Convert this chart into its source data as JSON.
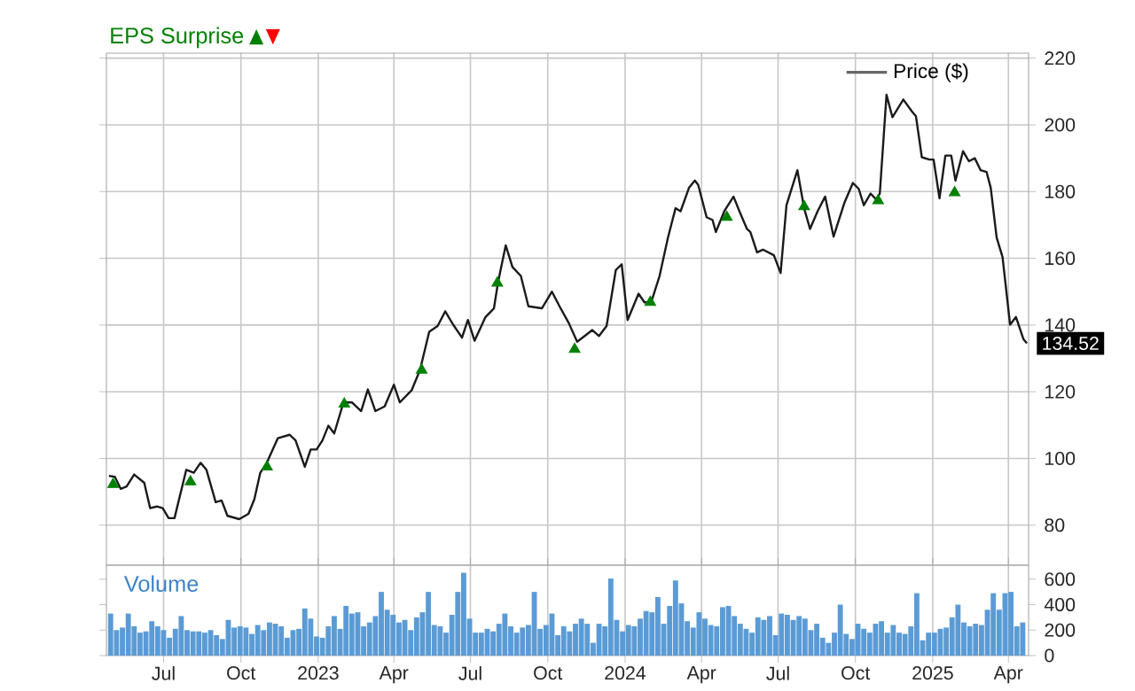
{
  "chart_data": [
    {
      "type": "line",
      "xlim": [
        "2022-04-24",
        "2025-04-25"
      ],
      "ylim": [
        68,
        221.5
      ],
      "yticks": [
        80,
        100,
        120,
        140,
        160,
        180,
        200,
        220
      ],
      "xticks": [
        {
          "value": "2022-07-01",
          "label": null
        },
        {
          "value": "2022-10-01",
          "label": null
        },
        {
          "value": "2023-01-01",
          "label": null
        },
        {
          "value": "2023-04-01",
          "label": null
        },
        {
          "value": "2023-07-01",
          "label": null
        },
        {
          "value": "2023-10-01",
          "label": null
        },
        {
          "value": "2024-01-01",
          "label": null
        },
        {
          "value": "2024-04-01",
          "label": null
        },
        {
          "value": "2024-07-01",
          "label": null
        },
        {
          "value": "2024-10-01",
          "label": null
        },
        {
          "value": "2025-01-01",
          "label": null
        },
        {
          "value": "2025-04-01",
          "label": null
        }
      ],
      "tick_labels": "y",
      "grid": true,
      "legend": "top right",
      "series": [
        {
          "name": "Price ($)",
          "type": "line",
          "color": "#1a1a1a",
          "x": [
            "2022-04-27",
            "2022-05-04",
            "2022-05-11",
            "2022-05-18",
            "2022-05-27",
            "2022-06-08",
            "2022-06-15",
            "2022-06-23",
            "2022-06-30",
            "2022-07-07",
            "2022-07-14",
            "2022-07-28",
            "2022-08-06",
            "2022-08-14",
            "2022-08-21",
            "2022-09-01",
            "2022-09-08",
            "2022-09-15",
            "2022-09-29",
            "2022-10-10",
            "2022-10-17",
            "2022-10-24",
            "2022-10-31",
            "2022-11-14",
            "2022-11-28",
            "2022-12-05",
            "2022-12-16",
            "2022-12-23",
            "2022-12-30",
            "2023-01-06",
            "2023-01-13",
            "2023-01-20",
            "2023-01-31",
            "2023-02-10",
            "2023-02-21",
            "2023-03-01",
            "2023-03-10",
            "2023-03-21",
            "2023-04-01",
            "2023-04-08",
            "2023-04-22",
            "2023-05-02",
            "2023-05-13",
            "2023-05-23",
            "2023-06-01",
            "2023-06-10",
            "2023-06-21",
            "2023-06-28",
            "2023-07-06",
            "2023-07-19",
            "2023-07-29",
            "2023-08-03",
            "2023-08-12",
            "2023-08-20",
            "2023-08-30",
            "2023-09-08",
            "2023-09-24",
            "2023-10-06",
            "2023-10-15",
            "2023-10-26",
            "2023-11-05",
            "2023-11-16",
            "2023-11-23",
            "2023-12-01",
            "2023-12-10",
            "2023-12-21",
            "2023-12-28",
            "2024-01-04",
            "2024-01-17",
            "2024-01-24",
            "2024-02-01",
            "2024-02-11",
            "2024-02-21",
            "2024-03-01",
            "2024-03-07",
            "2024-03-17",
            "2024-03-24",
            "2024-03-28",
            "2024-04-07",
            "2024-04-14",
            "2024-04-18",
            "2024-04-28",
            "2024-05-09",
            "2024-05-16",
            "2024-05-25",
            "2024-05-29",
            "2024-06-06",
            "2024-06-13",
            "2024-06-26",
            "2024-07-04",
            "2024-07-11",
            "2024-07-24",
            "2024-08-01",
            "2024-08-08",
            "2024-08-17",
            "2024-08-26",
            "2024-09-05",
            "2024-09-18",
            "2024-09-28",
            "2024-10-05",
            "2024-10-11",
            "2024-10-19",
            "2024-10-26",
            "2024-10-30",
            "2024-11-07",
            "2024-11-14",
            "2024-11-27",
            "2024-12-07",
            "2024-12-12",
            "2024-12-19",
            "2024-12-28",
            "2025-01-02",
            "2025-01-09",
            "2025-01-16",
            "2025-01-23",
            "2025-01-28",
            "2025-02-06",
            "2025-02-13",
            "2025-02-20",
            "2025-02-27",
            "2025-03-06",
            "2025-03-11",
            "2025-03-18",
            "2025-03-25",
            "2025-04-03",
            "2025-04-10",
            "2025-04-19",
            "2025-04-23"
          ],
          "values": [
            94.8,
            94.5,
            90.9,
            91.6,
            95.2,
            92.7,
            85.1,
            85.6,
            85.1,
            82.1,
            82.1,
            96.6,
            95.7,
            98.7,
            96.6,
            86.9,
            87.4,
            82.8,
            81.8,
            83.4,
            87.8,
            95.7,
            98.3,
            106.1,
            107.1,
            105.4,
            97.5,
            102.7,
            102.7,
            105.4,
            109.8,
            107.5,
            116.8,
            116.8,
            114.2,
            120.7,
            114.2,
            115.6,
            122.1,
            116.8,
            120.4,
            126.5,
            138.0,
            139.7,
            144.1,
            140.3,
            136.2,
            141.5,
            135.3,
            142.4,
            145.0,
            153.0,
            163.9,
            157.4,
            154.7,
            145.6,
            145.0,
            150.0,
            145.6,
            140.6,
            135.0,
            137.1,
            138.5,
            136.7,
            139.7,
            156.5,
            158.2,
            141.5,
            149.4,
            146.8,
            146.8,
            154.7,
            166.2,
            175.0,
            174.1,
            181.1,
            183.3,
            182.0,
            172.3,
            171.5,
            167.9,
            174.1,
            178.5,
            174.1,
            168.8,
            167.9,
            161.8,
            162.6,
            160.9,
            155.6,
            175.9,
            186.4,
            175.0,
            168.8,
            174.1,
            178.5,
            166.5,
            176.7,
            182.6,
            180.8,
            175.9,
            179.4,
            177.6,
            179.4,
            209.0,
            202.3,
            207.6,
            204.1,
            202.6,
            190.3,
            189.6,
            189.6,
            178.0,
            190.8,
            190.8,
            183.3,
            192.1,
            189.1,
            190.0,
            186.4,
            185.9,
            181.1,
            166.2,
            160.4,
            140.1,
            142.4,
            135.7,
            134.52
          ]
        },
        {
          "name": "EPS Surprise",
          "type": "scatter",
          "marker": "triangle",
          "color": "#008000",
          "x": [
            "2022-05-02",
            "2022-08-02",
            "2022-11-01",
            "2023-02-01",
            "2023-05-04",
            "2023-08-02",
            "2023-11-02",
            "2024-01-31",
            "2024-05-01",
            "2024-08-01",
            "2024-10-28",
            "2025-01-27"
          ],
          "values": [
            92.2,
            93.0,
            97.5,
            116.3,
            126.5,
            152.6,
            132.7,
            146.8,
            172.3,
            175.5,
            177.3,
            179.7
          ]
        }
      ],
      "annotations": [
        {
          "text": "134.52",
          "x": "2025-04-23",
          "y": 134.52
        }
      ]
    },
    {
      "type": "bar",
      "title": "Volume",
      "color": "#5b9bd5",
      "xlim": [
        "2022-04-24",
        "2025-04-25"
      ],
      "ylim": [
        0,
        710
      ],
      "yticks": [
        0,
        200,
        400,
        600
      ],
      "grid": "x",
      "xticks": [
        {
          "value": "2022-07-01",
          "label": "Jul"
        },
        {
          "value": "2022-10-01",
          "label": "Oct"
        },
        {
          "value": "2023-01-01",
          "label": "2023"
        },
        {
          "value": "2023-04-01",
          "label": "Apr"
        },
        {
          "value": "2023-07-01",
          "label": "Jul"
        },
        {
          "value": "2023-10-01",
          "label": "Oct"
        },
        {
          "value": "2024-01-01",
          "label": "2024"
        },
        {
          "value": "2024-04-01",
          "label": "Apr"
        },
        {
          "value": "2024-07-01",
          "label": "Jul"
        },
        {
          "value": "2024-10-01",
          "label": "Oct"
        },
        {
          "value": "2025-01-01",
          "label": "2025"
        },
        {
          "value": "2025-04-01",
          "label": "Apr"
        }
      ],
      "x": [
        "2022-04-29",
        "2022-05-06",
        "2022-05-13",
        "2022-05-20",
        "2022-05-27",
        "2022-06-03",
        "2022-06-10",
        "2022-06-17",
        "2022-06-24",
        "2022-07-01",
        "2022-07-08",
        "2022-07-15",
        "2022-07-22",
        "2022-07-29",
        "2022-08-05",
        "2022-08-12",
        "2022-08-19",
        "2022-08-26",
        "2022-09-02",
        "2022-09-09",
        "2022-09-16",
        "2022-09-23",
        "2022-09-30",
        "2022-10-07",
        "2022-10-14",
        "2022-10-21",
        "2022-10-28",
        "2022-11-04",
        "2022-11-11",
        "2022-11-18",
        "2022-11-25",
        "2022-12-02",
        "2022-12-09",
        "2022-12-16",
        "2022-12-23",
        "2022-12-30",
        "2023-01-06",
        "2023-01-13",
        "2023-01-20",
        "2023-01-27",
        "2023-02-03",
        "2023-02-10",
        "2023-02-17",
        "2023-02-24",
        "2023-03-03",
        "2023-03-10",
        "2023-03-17",
        "2023-03-24",
        "2023-03-31",
        "2023-04-07",
        "2023-04-14",
        "2023-04-21",
        "2023-04-28",
        "2023-05-05",
        "2023-05-12",
        "2023-05-19",
        "2023-05-26",
        "2023-06-02",
        "2023-06-09",
        "2023-06-16",
        "2023-06-23",
        "2023-06-30",
        "2023-07-07",
        "2023-07-14",
        "2023-07-21",
        "2023-07-28",
        "2023-08-04",
        "2023-08-11",
        "2023-08-18",
        "2023-08-25",
        "2023-09-01",
        "2023-09-08",
        "2023-09-15",
        "2023-09-22",
        "2023-09-29",
        "2023-10-06",
        "2023-10-13",
        "2023-10-20",
        "2023-10-27",
        "2023-11-03",
        "2023-11-10",
        "2023-11-17",
        "2023-11-24",
        "2023-12-01",
        "2023-12-08",
        "2023-12-15",
        "2023-12-22",
        "2023-12-29",
        "2024-01-05",
        "2024-01-12",
        "2024-01-19",
        "2024-01-26",
        "2024-02-02",
        "2024-02-09",
        "2024-02-16",
        "2024-02-23",
        "2024-03-01",
        "2024-03-08",
        "2024-03-15",
        "2024-03-22",
        "2024-03-29",
        "2024-04-05",
        "2024-04-12",
        "2024-04-19",
        "2024-04-26",
        "2024-05-03",
        "2024-05-10",
        "2024-05-17",
        "2024-05-24",
        "2024-05-31",
        "2024-06-07",
        "2024-06-14",
        "2024-06-21",
        "2024-06-28",
        "2024-07-05",
        "2024-07-12",
        "2024-07-19",
        "2024-07-26",
        "2024-08-02",
        "2024-08-09",
        "2024-08-16",
        "2024-08-23",
        "2024-08-30",
        "2024-09-06",
        "2024-09-13",
        "2024-09-20",
        "2024-09-27",
        "2024-10-04",
        "2024-10-11",
        "2024-10-18",
        "2024-10-25",
        "2024-11-01",
        "2024-11-08",
        "2024-11-15",
        "2024-11-22",
        "2024-11-29",
        "2024-12-06",
        "2024-12-13",
        "2024-12-20",
        "2024-12-27",
        "2025-01-03",
        "2025-01-10",
        "2025-01-17",
        "2025-01-24",
        "2025-01-31",
        "2025-02-07",
        "2025-02-14",
        "2025-02-21",
        "2025-02-28",
        "2025-03-07",
        "2025-03-14",
        "2025-03-21",
        "2025-03-28",
        "2025-04-04",
        "2025-04-11",
        "2025-04-18"
      ],
      "values": [
        330,
        200,
        220,
        330,
        230,
        180,
        190,
        270,
        230,
        200,
        140,
        210,
        310,
        200,
        190,
        190,
        180,
        200,
        160,
        130,
        280,
        220,
        230,
        220,
        170,
        240,
        200,
        260,
        250,
        230,
        140,
        200,
        210,
        370,
        290,
        150,
        140,
        230,
        310,
        210,
        390,
        330,
        340,
        230,
        260,
        310,
        500,
        360,
        320,
        260,
        280,
        200,
        300,
        340,
        500,
        240,
        230,
        180,
        320,
        500,
        650,
        290,
        180,
        180,
        210,
        190,
        250,
        330,
        230,
        180,
        220,
        240,
        500,
        210,
        240,
        330,
        160,
        230,
        190,
        250,
        290,
        250,
        100,
        250,
        230,
        605,
        280,
        190,
        240,
        230,
        290,
        350,
        340,
        460,
        250,
        390,
        590,
        410,
        270,
        220,
        340,
        290,
        240,
        230,
        380,
        390,
        310,
        250,
        210,
        180,
        300,
        280,
        310,
        160,
        330,
        320,
        280,
        310,
        290,
        200,
        250,
        140,
        100,
        180,
        400,
        170,
        130,
        250,
        210,
        180,
        250,
        270,
        180,
        240,
        180,
        170,
        230,
        490,
        120,
        180,
        180,
        210,
        220,
        300,
        400,
        260,
        230,
        250,
        240,
        360,
        490,
        360,
        490,
        500,
        230,
        260
      ]
    }
  ]
}
